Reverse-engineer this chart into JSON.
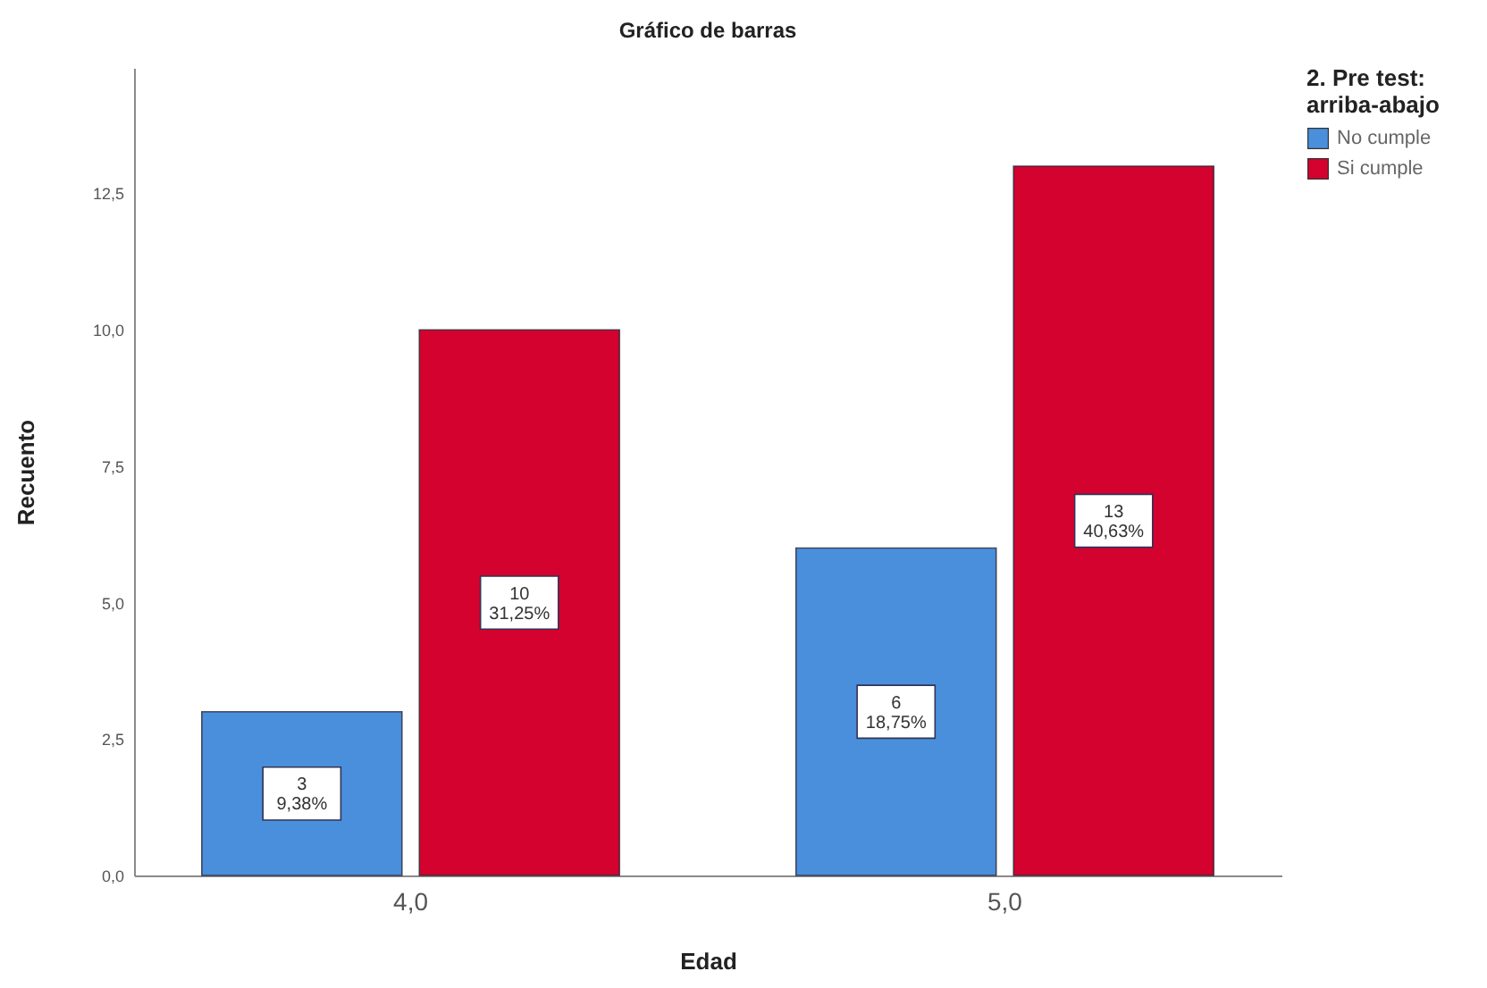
{
  "chart_data": {
    "type": "bar",
    "title": "Gráfico de barras",
    "xlabel": "Edad",
    "ylabel": "Recuento",
    "legend_title": "2. Pre test:\narriba-abajo",
    "categories": [
      "4,0",
      "5,0"
    ],
    "series": [
      {
        "name": "No cumple",
        "color": "#4a8fdc",
        "values": [
          3,
          6
        ],
        "value_labels": [
          "3\n9,38%",
          "6\n18,75%"
        ]
      },
      {
        "name": "Si cumple",
        "color": "#d3022e",
        "values": [
          10,
          13
        ],
        "value_labels": [
          "10\n31,25%",
          "13\n40,63%"
        ]
      }
    ],
    "ylim": [
      0,
      14.8
    ],
    "yticks": [
      {
        "value": 0,
        "label": "0,0"
      },
      {
        "value": 2.5,
        "label": "2,5"
      },
      {
        "value": 5,
        "label": "5,0"
      },
      {
        "value": 7.5,
        "label": "7,5"
      },
      {
        "value": 10,
        "label": "10,0"
      },
      {
        "value": 12.5,
        "label": "12,5"
      }
    ],
    "legend": "top right"
  }
}
